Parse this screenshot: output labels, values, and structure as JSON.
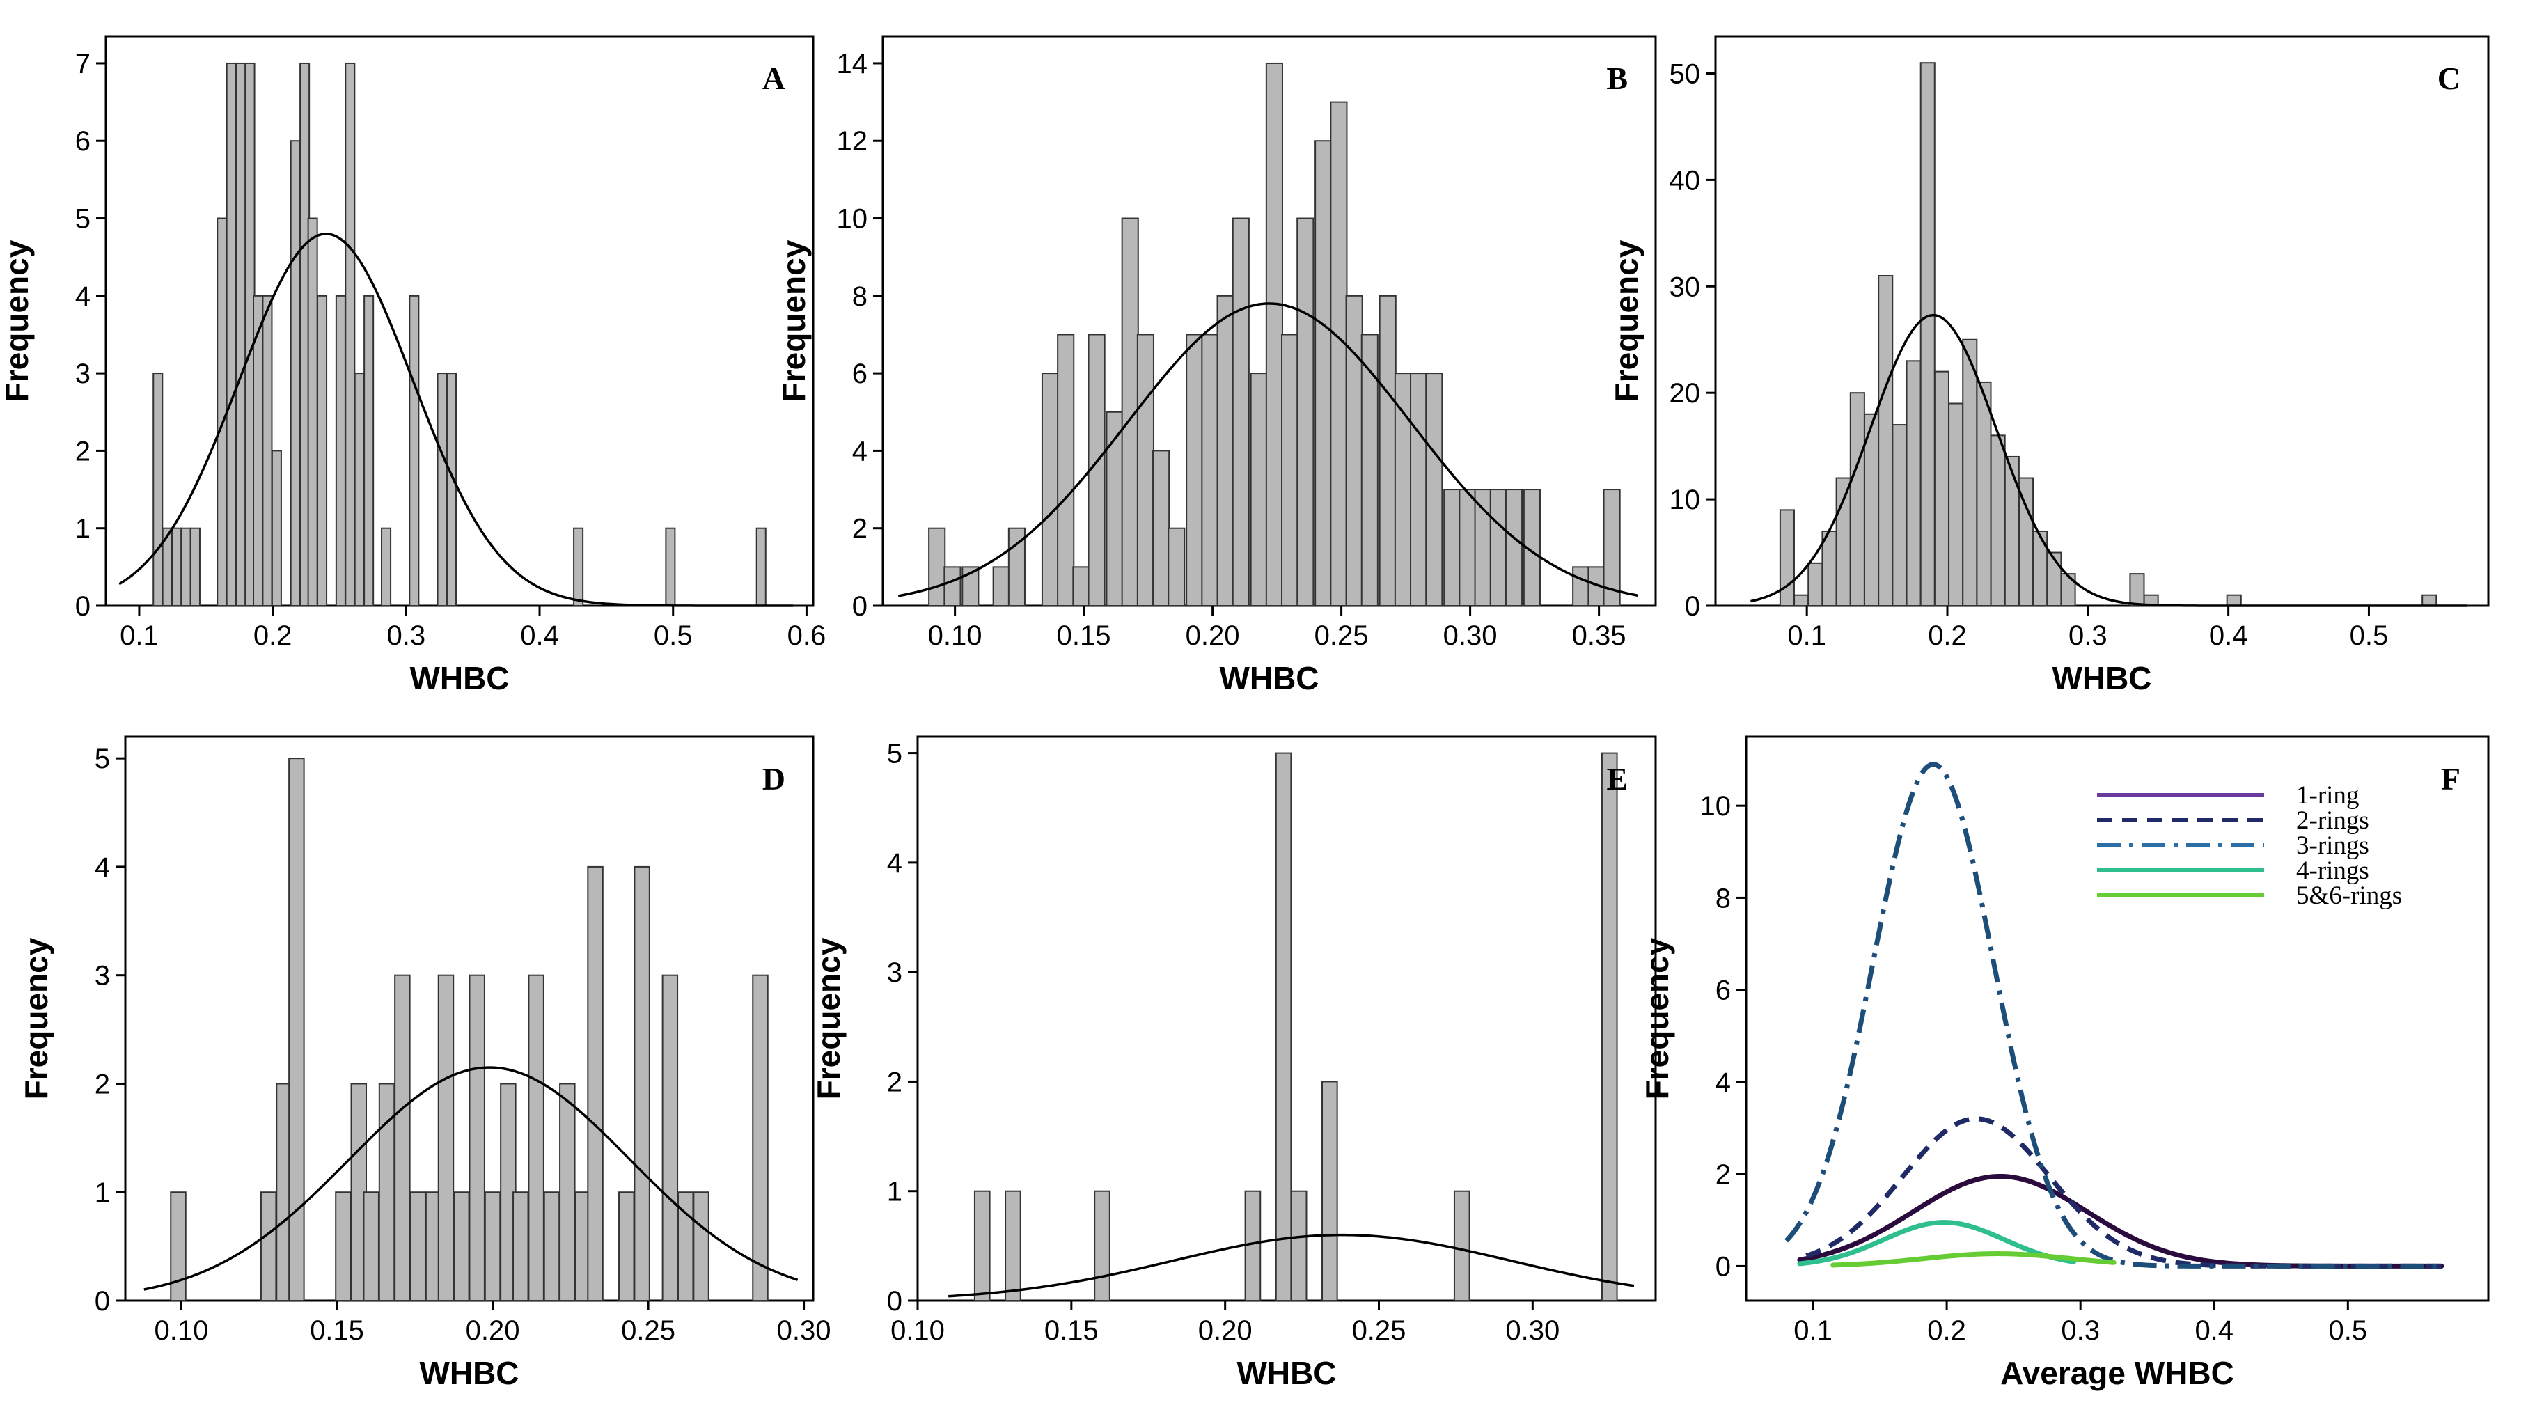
{
  "figure": {
    "background": "#ffffff",
    "bar_fill": "#b8b8b8",
    "bar_stroke": "#333333",
    "curve_color": "#000000"
  },
  "chart_data": [
    {
      "panel": "A",
      "type": "bar",
      "xlabel": "WHBC",
      "ylabel": "Frequency",
      "xlim": [
        0.075,
        0.605
      ],
      "ylim": [
        0,
        7.35
      ],
      "bin_width": 0.0068,
      "xticks": [
        0.1,
        0.2,
        0.3,
        0.4,
        0.5,
        0.6
      ],
      "xtick_labels": [
        "0.1",
        "0.2",
        "0.3",
        "0.4",
        "0.5",
        "0.6"
      ],
      "yticks": [
        0,
        1,
        2,
        3,
        4,
        5,
        6,
        7
      ],
      "ytick_labels": [
        "0",
        "1",
        "2",
        "3",
        "4",
        "5",
        "6",
        "7"
      ],
      "bins": [
        [
          0.114,
          3
        ],
        [
          0.121,
          1
        ],
        [
          0.128,
          1
        ],
        [
          0.135,
          1
        ],
        [
          0.142,
          1
        ],
        [
          0.162,
          5
        ],
        [
          0.169,
          7
        ],
        [
          0.176,
          7
        ],
        [
          0.183,
          7
        ],
        [
          0.189,
          4
        ],
        [
          0.196,
          4
        ],
        [
          0.203,
          2
        ],
        [
          0.217,
          6
        ],
        [
          0.224,
          7
        ],
        [
          0.23,
          5
        ],
        [
          0.237,
          4
        ],
        [
          0.251,
          4
        ],
        [
          0.258,
          7
        ],
        [
          0.265,
          3
        ],
        [
          0.272,
          4
        ],
        [
          0.285,
          1
        ],
        [
          0.306,
          4
        ],
        [
          0.327,
          3
        ],
        [
          0.334,
          3
        ],
        [
          0.429,
          1
        ],
        [
          0.498,
          1
        ],
        [
          0.566,
          1
        ]
      ],
      "fit": {
        "mean": 0.24,
        "sd": 0.065,
        "peak": 4.8,
        "x_range": [
          0.085,
          0.59
        ]
      }
    },
    {
      "panel": "B",
      "type": "bar",
      "xlabel": "WHBC",
      "ylabel": "Frequency",
      "xlim": [
        0.072,
        0.372
      ],
      "ylim": [
        0,
        14.7
      ],
      "bin_width": 0.00625,
      "xticks": [
        0.1,
        0.15,
        0.2,
        0.25,
        0.3,
        0.35
      ],
      "xtick_labels": [
        "0.10",
        "0.15",
        "0.20",
        "0.25",
        "0.30",
        "0.35"
      ],
      "yticks": [
        0,
        2,
        4,
        6,
        8,
        10,
        12,
        14
      ],
      "ytick_labels": [
        "0",
        "2",
        "4",
        "6",
        "8",
        "10",
        "12",
        "14"
      ],
      "bins": [
        [
          0.093,
          2
        ],
        [
          0.099,
          1
        ],
        [
          0.106,
          1
        ],
        [
          0.118,
          1
        ],
        [
          0.124,
          2
        ],
        [
          0.137,
          6
        ],
        [
          0.143,
          7
        ],
        [
          0.149,
          1
        ],
        [
          0.155,
          7
        ],
        [
          0.162,
          5
        ],
        [
          0.168,
          10
        ],
        [
          0.174,
          7
        ],
        [
          0.18,
          4
        ],
        [
          0.186,
          2
        ],
        [
          0.193,
          7
        ],
        [
          0.199,
          7
        ],
        [
          0.205,
          8
        ],
        [
          0.211,
          10
        ],
        [
          0.218,
          6
        ],
        [
          0.224,
          14
        ],
        [
          0.23,
          7
        ],
        [
          0.236,
          10
        ],
        [
          0.243,
          12
        ],
        [
          0.249,
          13
        ],
        [
          0.255,
          8
        ],
        [
          0.261,
          7
        ],
        [
          0.268,
          8
        ],
        [
          0.274,
          6
        ],
        [
          0.28,
          6
        ],
        [
          0.286,
          6
        ],
        [
          0.293,
          3
        ],
        [
          0.299,
          3
        ],
        [
          0.305,
          3
        ],
        [
          0.311,
          3
        ],
        [
          0.317,
          3
        ],
        [
          0.324,
          3
        ],
        [
          0.343,
          1
        ],
        [
          0.349,
          1
        ],
        [
          0.355,
          3
        ]
      ],
      "fit": {
        "mean": 0.222,
        "sd": 0.055,
        "peak": 7.8,
        "x_range": [
          0.078,
          0.365
        ]
      }
    },
    {
      "panel": "C",
      "type": "bar",
      "xlabel": "WHBC",
      "ylabel": "Frequency",
      "xlim": [
        0.035,
        0.585
      ],
      "ylim": [
        0,
        53.5
      ],
      "bin_width": 0.00995,
      "xticks": [
        0.1,
        0.2,
        0.3,
        0.4,
        0.5
      ],
      "xtick_labels": [
        "0.1",
        "0.2",
        "0.3",
        "0.4",
        "0.5"
      ],
      "yticks": [
        0,
        10,
        20,
        30,
        40,
        50
      ],
      "ytick_labels": [
        "0",
        "10",
        "20",
        "30",
        "40",
        "50"
      ],
      "bins": [
        [
          0.086,
          9
        ],
        [
          0.096,
          1
        ],
        [
          0.106,
          4
        ],
        [
          0.116,
          7
        ],
        [
          0.126,
          12
        ],
        [
          0.136,
          20
        ],
        [
          0.146,
          18
        ],
        [
          0.156,
          31
        ],
        [
          0.166,
          17
        ],
        [
          0.176,
          23
        ],
        [
          0.186,
          51
        ],
        [
          0.196,
          22
        ],
        [
          0.206,
          19
        ],
        [
          0.216,
          25
        ],
        [
          0.226,
          21
        ],
        [
          0.236,
          16
        ],
        [
          0.246,
          14
        ],
        [
          0.256,
          12
        ],
        [
          0.266,
          7
        ],
        [
          0.276,
          5
        ],
        [
          0.286,
          3
        ],
        [
          0.335,
          3
        ],
        [
          0.345,
          1
        ],
        [
          0.404,
          1
        ],
        [
          0.543,
          1
        ]
      ],
      "fit": {
        "mean": 0.19,
        "sd": 0.045,
        "peak": 27.3,
        "x_range": [
          0.06,
          0.57
        ]
      }
    },
    {
      "panel": "D",
      "type": "bar",
      "xlabel": "WHBC",
      "ylabel": "Frequency",
      "xlim": [
        0.082,
        0.303
      ],
      "ylim": [
        0,
        5.2
      ],
      "bin_width": 0.0048,
      "xticks": [
        0.1,
        0.15,
        0.2,
        0.25,
        0.3
      ],
      "xtick_labels": [
        "0.10",
        "0.15",
        "0.20",
        "0.25",
        "0.30"
      ],
      "yticks": [
        0,
        1,
        2,
        3,
        4,
        5
      ],
      "ytick_labels": [
        "0",
        "1",
        "2",
        "3",
        "4",
        "5"
      ],
      "bins": [
        [
          0.099,
          1
        ],
        [
          0.128,
          1
        ],
        [
          0.133,
          2
        ],
        [
          0.137,
          5
        ],
        [
          0.152,
          1
        ],
        [
          0.157,
          2
        ],
        [
          0.161,
          1
        ],
        [
          0.166,
          2
        ],
        [
          0.171,
          3
        ],
        [
          0.176,
          1
        ],
        [
          0.181,
          1
        ],
        [
          0.185,
          3
        ],
        [
          0.19,
          1
        ],
        [
          0.195,
          3
        ],
        [
          0.2,
          1
        ],
        [
          0.205,
          2
        ],
        [
          0.209,
          1
        ],
        [
          0.214,
          3
        ],
        [
          0.219,
          1
        ],
        [
          0.224,
          2
        ],
        [
          0.229,
          1
        ],
        [
          0.233,
          4
        ],
        [
          0.243,
          1
        ],
        [
          0.248,
          4
        ],
        [
          0.257,
          3
        ],
        [
          0.262,
          1
        ],
        [
          0.267,
          1
        ],
        [
          0.286,
          3
        ]
      ],
      "fit": {
        "mean": 0.199,
        "sd": 0.045,
        "peak": 2.15,
        "x_range": [
          0.088,
          0.298
        ]
      }
    },
    {
      "panel": "E",
      "type": "bar",
      "xlabel": "WHBC",
      "ylabel": "Frequency",
      "xlim": [
        0.1,
        0.34
      ],
      "ylim": [
        0,
        5.15
      ],
      "bin_width": 0.0049,
      "xticks": [
        0.1,
        0.15,
        0.2,
        0.25,
        0.3
      ],
      "xtick_labels": [
        "0.10",
        "0.15",
        "0.20",
        "0.25",
        "0.30"
      ],
      "yticks": [
        0,
        1,
        2,
        3,
        4,
        5
      ],
      "ytick_labels": [
        "0",
        "1",
        "2",
        "3",
        "4",
        "5"
      ],
      "bins": [
        [
          0.121,
          1
        ],
        [
          0.131,
          1
        ],
        [
          0.16,
          1
        ],
        [
          0.209,
          1
        ],
        [
          0.219,
          5
        ],
        [
          0.224,
          1
        ],
        [
          0.234,
          2
        ],
        [
          0.277,
          1
        ],
        [
          0.325,
          5
        ]
      ],
      "fit": {
        "mean": 0.238,
        "sd": 0.055,
        "peak": 0.6,
        "x_range": [
          0.11,
          0.333
        ]
      }
    },
    {
      "panel": "F",
      "type": "line",
      "xlabel": "Average WHBC",
      "ylabel": "Frequency",
      "xlim": [
        0.05,
        0.605
      ],
      "ylim": [
        -0.75,
        11.5
      ],
      "xticks": [
        0.1,
        0.2,
        0.3,
        0.4,
        0.5
      ],
      "xtick_labels": [
        "0.1",
        "0.2",
        "0.3",
        "0.4",
        "0.5"
      ],
      "yticks": [
        0,
        2,
        4,
        6,
        8,
        10
      ],
      "ytick_labels": [
        "0",
        "2",
        "4",
        "6",
        "8",
        "10"
      ],
      "series": [
        {
          "name": "1-ring",
          "color": "#2b0a3d",
          "dash": "",
          "mean": 0.24,
          "sd": 0.065,
          "peak": 1.95,
          "x_range": [
            0.09,
            0.57
          ],
          "legend_color": "#6a3a9e"
        },
        {
          "name": "2-rings",
          "color": "#1f2a66",
          "dash": "22,14",
          "mean": 0.222,
          "sd": 0.055,
          "peak": 3.2,
          "x_range": [
            0.095,
            0.57
          ],
          "legend_color": "#1f2a66"
        },
        {
          "name": "3-rings",
          "color": "#1d4e7a",
          "dash": "34,12,6,12",
          "mean": 0.19,
          "sd": 0.045,
          "peak": 10.9,
          "x_range": [
            0.08,
            0.57
          ],
          "legend_color": "#2c6ea6"
        },
        {
          "name": "4-rings",
          "color": "#2fbf8f",
          "dash": "",
          "mean": 0.198,
          "sd": 0.045,
          "peak": 0.95,
          "x_range": [
            0.09,
            0.295
          ],
          "legend_color": "#2fbf8f"
        },
        {
          "name": "5&6-rings",
          "color": "#66cc33",
          "dash": "",
          "mean": 0.238,
          "sd": 0.055,
          "peak": 0.27,
          "x_range": [
            0.115,
            0.325
          ],
          "legend_color": "#66cc33"
        }
      ]
    }
  ]
}
